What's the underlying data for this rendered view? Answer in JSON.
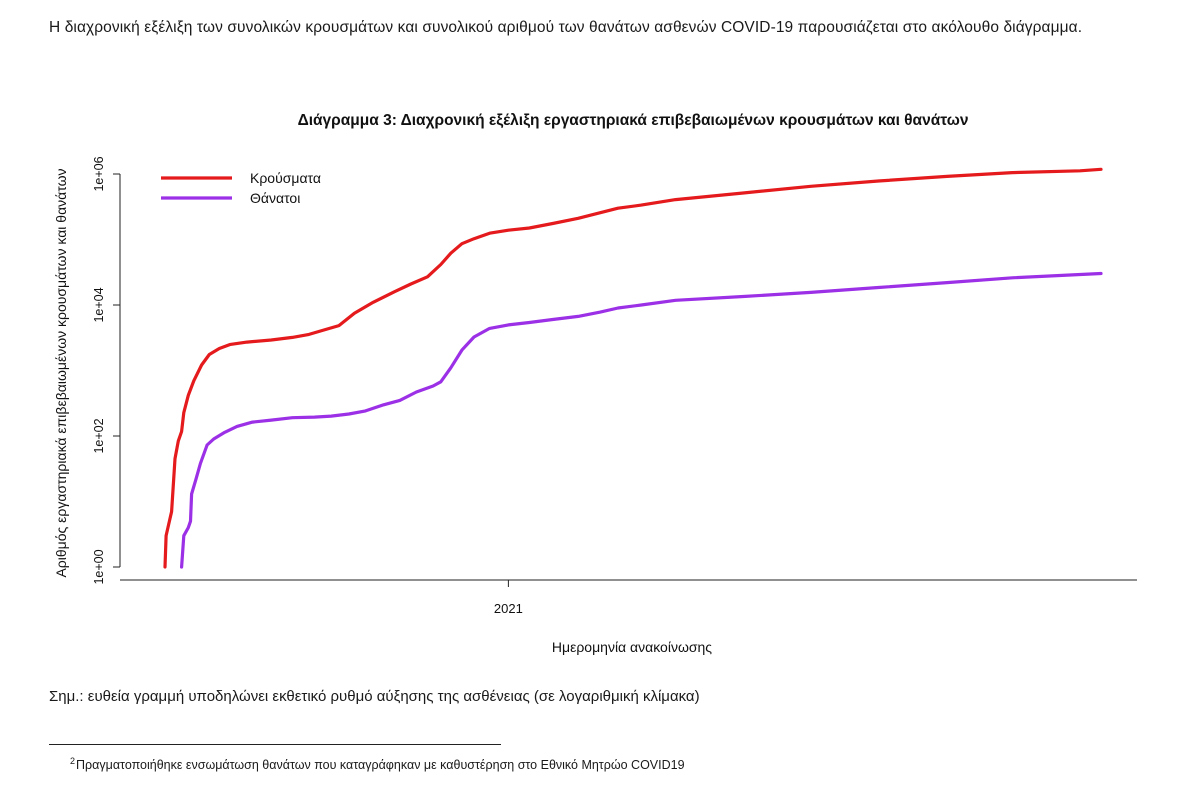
{
  "document": {
    "intro_text": "Η διαχρονική εξέλιξη των συνολικών κρουσμάτων και συνολικού αριθμού των θανάτων ασθενών COVID-19 παρουσιάζεται στο ακόλουθο διάγραμμα.",
    "note_text": "Σημ.: ευθεία γραμμή υποδηλώνει εκθετικό ρυθμό αύξησης της ασθένειας (σε λογαριθμική κλίμακα)",
    "footnote_marker": "2",
    "footnote_text": "Πραγματοποιήθηκε ενσωμάτωση θανάτων που καταγράφηκαν με καθυστέρηση στο Εθνικό Μητρώο COVID19"
  },
  "chart_data": {
    "type": "line",
    "title": "Διάγραμμα 3: Διαχρονική εξέλιξη εργαστηριακά επιβεβαιωμένων κρουσμάτων και θανάτων",
    "xlabel": "Ημερομηνία ανακοίνωσης",
    "ylabel": "Αριθμός εργαστηριακά επιβεβαιωμένων κρουσμάτων και θανάτων",
    "y_scale": "log",
    "ylim": [
      1,
      1000000
    ],
    "xlim": [
      "2020-02-26",
      "2022-06-20"
    ],
    "x_ticks": [
      {
        "date": "2021-01-01",
        "label": "2021"
      }
    ],
    "y_ticks": [
      {
        "value": 1,
        "label": "1e+00"
      },
      {
        "value": 100,
        "label": "1e+02"
      },
      {
        "value": 10000,
        "label": "1e+04"
      },
      {
        "value": 1000000,
        "label": "1e+06"
      }
    ],
    "grid": false,
    "legend_position": "top-left",
    "series": [
      {
        "name": "Κρούσματα",
        "color": "#e41a1c",
        "points": [
          [
            "2020-02-26",
            1
          ],
          [
            "2020-02-27",
            3
          ],
          [
            "2020-03-01",
            5
          ],
          [
            "2020-03-03",
            7
          ],
          [
            "2020-03-06",
            45
          ],
          [
            "2020-03-09",
            84
          ],
          [
            "2020-03-12",
            117
          ],
          [
            "2020-03-14",
            228
          ],
          [
            "2020-03-18",
            418
          ],
          [
            "2020-03-23",
            695
          ],
          [
            "2020-03-30",
            1212
          ],
          [
            "2020-04-06",
            1755
          ],
          [
            "2020-04-15",
            2170
          ],
          [
            "2020-04-25",
            2506
          ],
          [
            "2020-05-10",
            2710
          ],
          [
            "2020-06-01",
            2918
          ],
          [
            "2020-06-20",
            3203
          ],
          [
            "2020-07-05",
            3562
          ],
          [
            "2020-07-20",
            4227
          ],
          [
            "2020-08-01",
            4855
          ],
          [
            "2020-08-15",
            7472
          ],
          [
            "2020-09-01",
            10998
          ],
          [
            "2020-09-20",
            15928
          ],
          [
            "2020-10-05",
            20947
          ],
          [
            "2020-10-20",
            26986
          ],
          [
            "2020-11-01",
            41527
          ],
          [
            "2020-11-10",
            61694
          ],
          [
            "2020-11-20",
            86356
          ],
          [
            "2020-12-01",
            103018
          ],
          [
            "2020-12-15",
            124681
          ],
          [
            "2021-01-01",
            138850
          ],
          [
            "2021-01-20",
            149973
          ],
          [
            "2021-02-10",
            175657
          ],
          [
            "2021-03-05",
            210998
          ],
          [
            "2021-03-25",
            256290
          ],
          [
            "2021-04-10",
            300542
          ],
          [
            "2021-05-01",
            335074
          ],
          [
            "2021-06-01",
            407110
          ],
          [
            "2021-08-01",
            512000
          ],
          [
            "2021-10-01",
            648000
          ],
          [
            "2021-12-01",
            782000
          ],
          [
            "2022-02-01",
            920000
          ],
          [
            "2022-04-01",
            1050000
          ],
          [
            "2022-06-01",
            1120000
          ],
          [
            "2022-06-20",
            1180000
          ]
        ]
      },
      {
        "name": "Θάνατοι",
        "color": "#9b30e6",
        "points": [
          [
            "2020-03-12",
            1
          ],
          [
            "2020-03-14",
            3
          ],
          [
            "2020-03-18",
            4
          ],
          [
            "2020-03-20",
            5
          ],
          [
            "2020-03-21",
            13
          ],
          [
            "2020-03-25",
            22
          ],
          [
            "2020-03-29",
            38
          ],
          [
            "2020-04-04",
            73
          ],
          [
            "2020-04-10",
            90
          ],
          [
            "2020-04-20",
            114
          ],
          [
            "2020-05-01",
            140
          ],
          [
            "2020-05-15",
            163
          ],
          [
            "2020-06-01",
            175
          ],
          [
            "2020-06-20",
            190
          ],
          [
            "2020-07-10",
            194
          ],
          [
            "2020-07-25",
            201
          ],
          [
            "2020-08-10",
            217
          ],
          [
            "2020-08-25",
            242
          ],
          [
            "2020-09-10",
            298
          ],
          [
            "2020-09-25",
            350
          ],
          [
            "2020-10-10",
            470
          ],
          [
            "2020-10-25",
            580
          ],
          [
            "2020-11-01",
            673
          ],
          [
            "2020-11-10",
            1100
          ],
          [
            "2020-11-20",
            2050
          ],
          [
            "2020-12-01",
            3250
          ],
          [
            "2020-12-15",
            4400
          ],
          [
            "2021-01-01",
            4971
          ],
          [
            "2021-01-20",
            5400
          ],
          [
            "2021-02-10",
            6000
          ],
          [
            "2021-03-05",
            6700
          ],
          [
            "2021-03-25",
            7800
          ],
          [
            "2021-04-10",
            9000
          ],
          [
            "2021-05-01",
            10000
          ],
          [
            "2021-06-01",
            11800
          ],
          [
            "2021-08-01",
            13500
          ],
          [
            "2021-10-01",
            15600
          ],
          [
            "2021-12-01",
            18500
          ],
          [
            "2022-02-01",
            22000
          ],
          [
            "2022-04-01",
            26000
          ],
          [
            "2022-06-20",
            30300
          ]
        ]
      }
    ]
  }
}
